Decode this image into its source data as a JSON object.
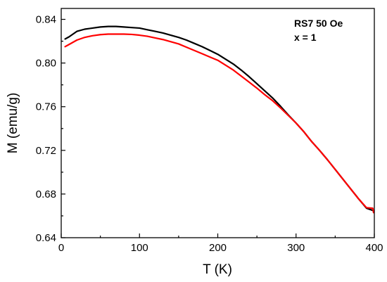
{
  "chart_data": {
    "type": "line",
    "xlabel": "T (K)",
    "ylabel": "M (emu/g)",
    "xlim": [
      0,
      400
    ],
    "ylim": [
      0.64,
      0.85
    ],
    "x_ticks": [
      0,
      100,
      200,
      300,
      400
    ],
    "y_ticks": [
      0.64,
      0.68,
      0.72,
      0.76,
      0.8,
      0.84
    ],
    "y_tick_labels": [
      "0.64",
      "0.68",
      "0.72",
      "0.76",
      "0.80",
      "0.84"
    ],
    "x_tick_labels": [
      "0",
      "100",
      "200",
      "300",
      "400"
    ],
    "grid": false,
    "annotations": [
      "RS7 50 Oe",
      "x = 1"
    ],
    "series": [
      {
        "color": "#000000",
        "x": [
          5,
          10,
          20,
          30,
          40,
          50,
          60,
          70,
          80,
          90,
          100,
          110,
          120,
          130,
          140,
          150,
          160,
          170,
          180,
          190,
          200,
          210,
          220,
          230,
          240,
          250,
          260,
          270,
          280,
          290,
          300,
          310,
          320,
          330,
          340,
          350,
          360,
          370,
          380,
          390,
          398
        ],
        "y": [
          0.822,
          0.824,
          0.829,
          0.831,
          0.832,
          0.833,
          0.8335,
          0.8335,
          0.833,
          0.8325,
          0.832,
          0.8305,
          0.829,
          0.8275,
          0.8255,
          0.8235,
          0.821,
          0.818,
          0.815,
          0.8115,
          0.808,
          0.8035,
          0.799,
          0.7935,
          0.7875,
          0.781,
          0.7745,
          0.768,
          0.7605,
          0.7525,
          0.745,
          0.737,
          0.728,
          0.72,
          0.7115,
          0.7025,
          0.6935,
          0.6845,
          0.6755,
          0.667,
          0.665
        ]
      },
      {
        "color": "#ff0000",
        "x": [
          5,
          10,
          20,
          30,
          40,
          50,
          60,
          70,
          80,
          90,
          100,
          110,
          120,
          130,
          140,
          150,
          160,
          170,
          180,
          190,
          200,
          210,
          220,
          230,
          240,
          250,
          260,
          270,
          280,
          290,
          300,
          310,
          320,
          330,
          340,
          350,
          360,
          370,
          380,
          390,
          398,
          399
        ],
        "y": [
          0.815,
          0.817,
          0.821,
          0.8235,
          0.825,
          0.826,
          0.8265,
          0.8265,
          0.8265,
          0.8262,
          0.8255,
          0.8245,
          0.823,
          0.8215,
          0.8195,
          0.8175,
          0.8145,
          0.8115,
          0.8085,
          0.8055,
          0.8025,
          0.798,
          0.7935,
          0.788,
          0.7825,
          0.777,
          0.771,
          0.7655,
          0.759,
          0.752,
          0.745,
          0.737,
          0.728,
          0.72,
          0.7115,
          0.7025,
          0.6935,
          0.6845,
          0.6755,
          0.6675,
          0.667,
          0.663
        ]
      }
    ]
  }
}
